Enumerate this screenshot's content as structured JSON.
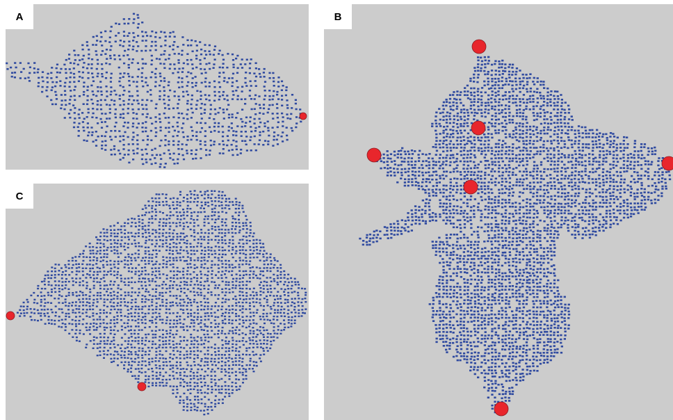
{
  "colors": {
    "background": "#cccccc",
    "points": "#2f4aa0",
    "markers": "#e8262c",
    "marker_outline": "#8a1c22"
  },
  "panels": [
    {
      "id": "A",
      "label": "A"
    },
    {
      "id": "B",
      "label": "B"
    },
    {
      "id": "C",
      "label": "C"
    }
  ]
}
